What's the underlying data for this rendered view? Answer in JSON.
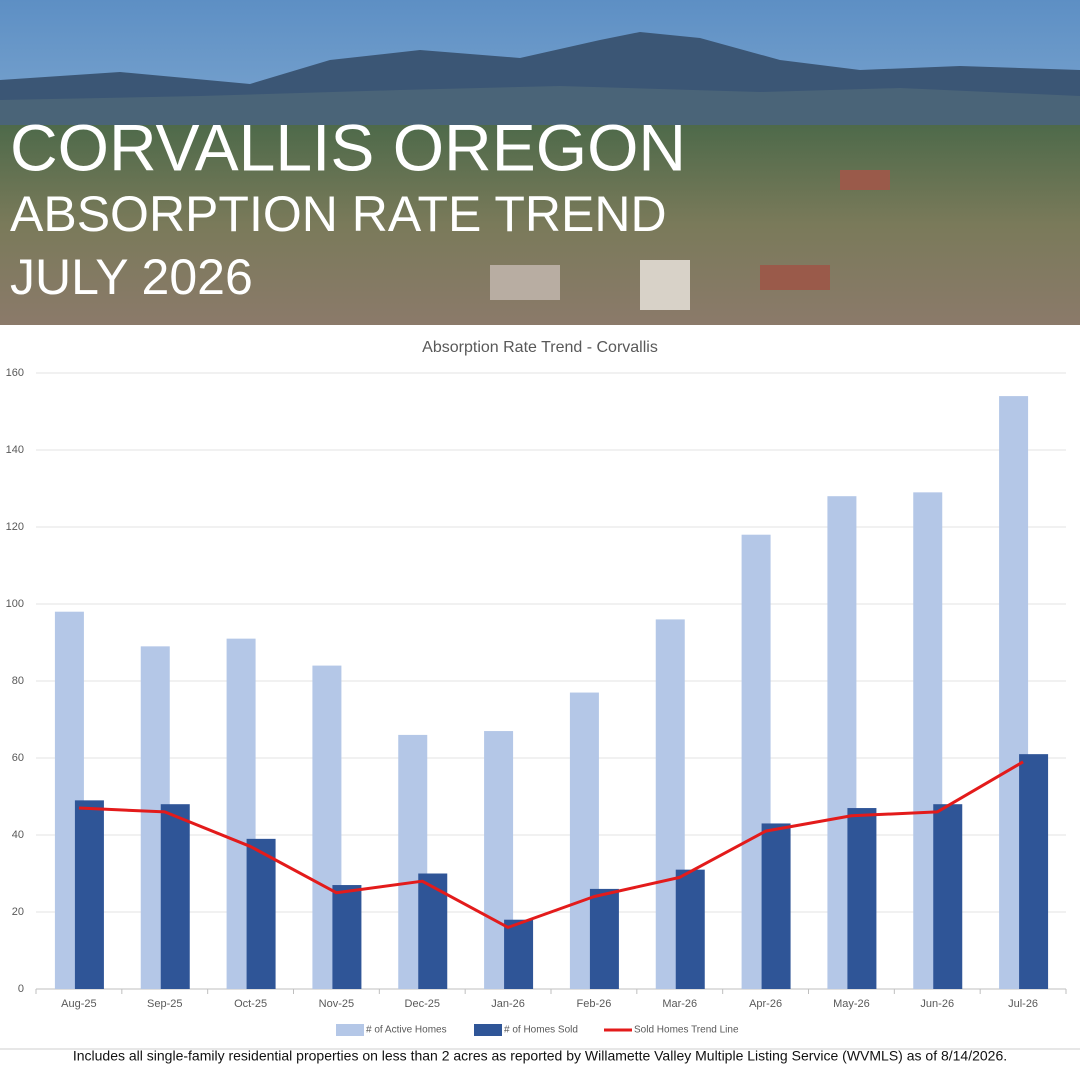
{
  "banner": {
    "lines": [
      "CORVALLIS OREGON",
      "ABSORPTION RATE TREND",
      "JULY 2026"
    ]
  },
  "footnote": "Includes all single-family residential properties on less than 2 acres as reported by Willamette Valley Multiple Listing Service (WVMLS) as of 8/14/2026.",
  "chart_data": {
    "type": "bar",
    "title": "Absorption Rate Trend - Corvallis",
    "categories": [
      "Aug-25",
      "Sep-25",
      "Oct-25",
      "Nov-25",
      "Dec-25",
      "Jan-26",
      "Feb-26",
      "Mar-26",
      "Apr-26",
      "May-26",
      "Jun-26",
      "Jul-26"
    ],
    "series": [
      {
        "name": "# of Active Homes",
        "type": "bar",
        "color": "#b4c7e7",
        "values": [
          98,
          89,
          91,
          84,
          66,
          67,
          77,
          96,
          118,
          128,
          129,
          154
        ]
      },
      {
        "name": "# of Homes Sold",
        "type": "bar",
        "color": "#2f5597",
        "values": [
          49,
          48,
          39,
          27,
          30,
          18,
          26,
          31,
          43,
          47,
          48,
          61
        ]
      },
      {
        "name": "Sold Homes Trend Line",
        "type": "line",
        "color": "#e31b1b",
        "values": [
          47,
          46,
          37,
          25,
          28,
          16,
          24,
          29,
          41,
          45,
          46,
          59
        ]
      }
    ],
    "ylim": [
      0,
      160
    ],
    "yticks": [
      0,
      20,
      40,
      60,
      80,
      100,
      120,
      140,
      160
    ],
    "grid": true,
    "legend": "bottom"
  }
}
